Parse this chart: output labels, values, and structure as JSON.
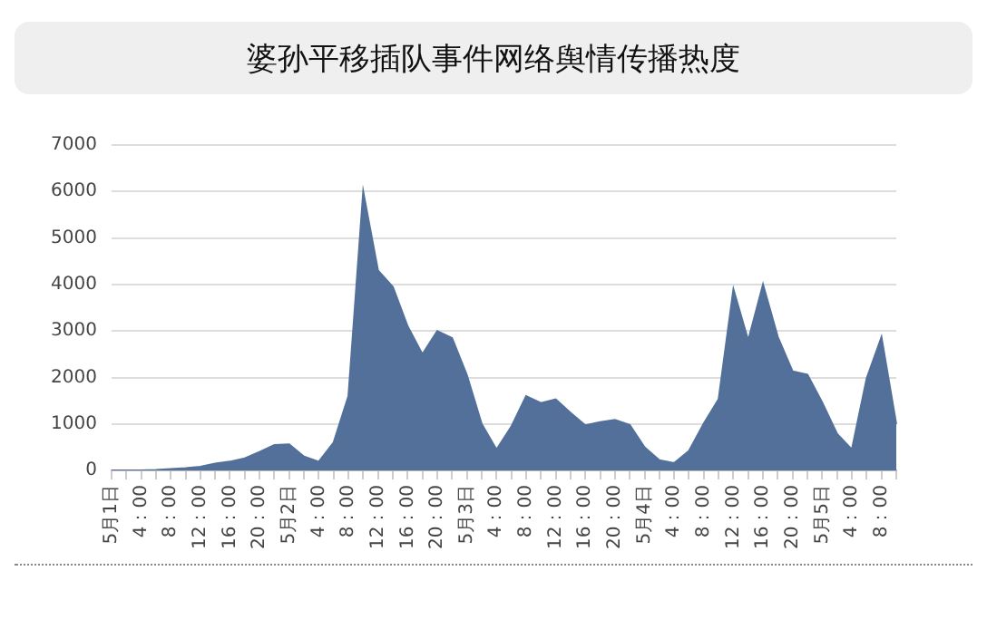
{
  "chart_data": {
    "type": "area",
    "title": "婆孙平移插队事件网络舆情传播热度",
    "categories": [
      "5月1日",
      null,
      "4：00",
      null,
      "8：00",
      null,
      "12：00",
      null,
      "16：00",
      null,
      "20：00",
      null,
      "5月2日",
      null,
      "4：00",
      null,
      "8：00",
      null,
      "12：00",
      null,
      "16：00",
      null,
      "20：00",
      null,
      "5月3日",
      null,
      "4：00",
      null,
      "8：00",
      null,
      "12：00",
      null,
      "16：00",
      null,
      "20：00",
      null,
      "5月4日",
      null,
      "4：00",
      null,
      "8：00",
      null,
      "12：00",
      null,
      "16：00",
      null,
      "20：00",
      null,
      "5月5日",
      null,
      "4：00",
      null,
      "8：00",
      null
    ],
    "values": [
      0,
      0,
      0,
      10,
      30,
      50,
      80,
      150,
      190,
      260,
      400,
      550,
      560,
      300,
      190,
      600,
      1600,
      6000,
      4300,
      3950,
      3100,
      2500,
      3000,
      2850,
      2050,
      1000,
      450,
      940,
      1600,
      1450,
      1530,
      1240,
      970,
      1040,
      1090,
      980,
      500,
      220,
      160,
      420,
      1010,
      1530,
      3900,
      2800,
      4000,
      2870,
      2130,
      2060,
      1460,
      790,
      450,
      1980,
      2870,
      1000
    ],
    "color": "#52709a",
    "ylim": [
      0,
      7000
    ],
    "yticks": [
      0,
      1000,
      2000,
      3000,
      4000,
      5000,
      6000,
      7000
    ],
    "grid": "y"
  }
}
